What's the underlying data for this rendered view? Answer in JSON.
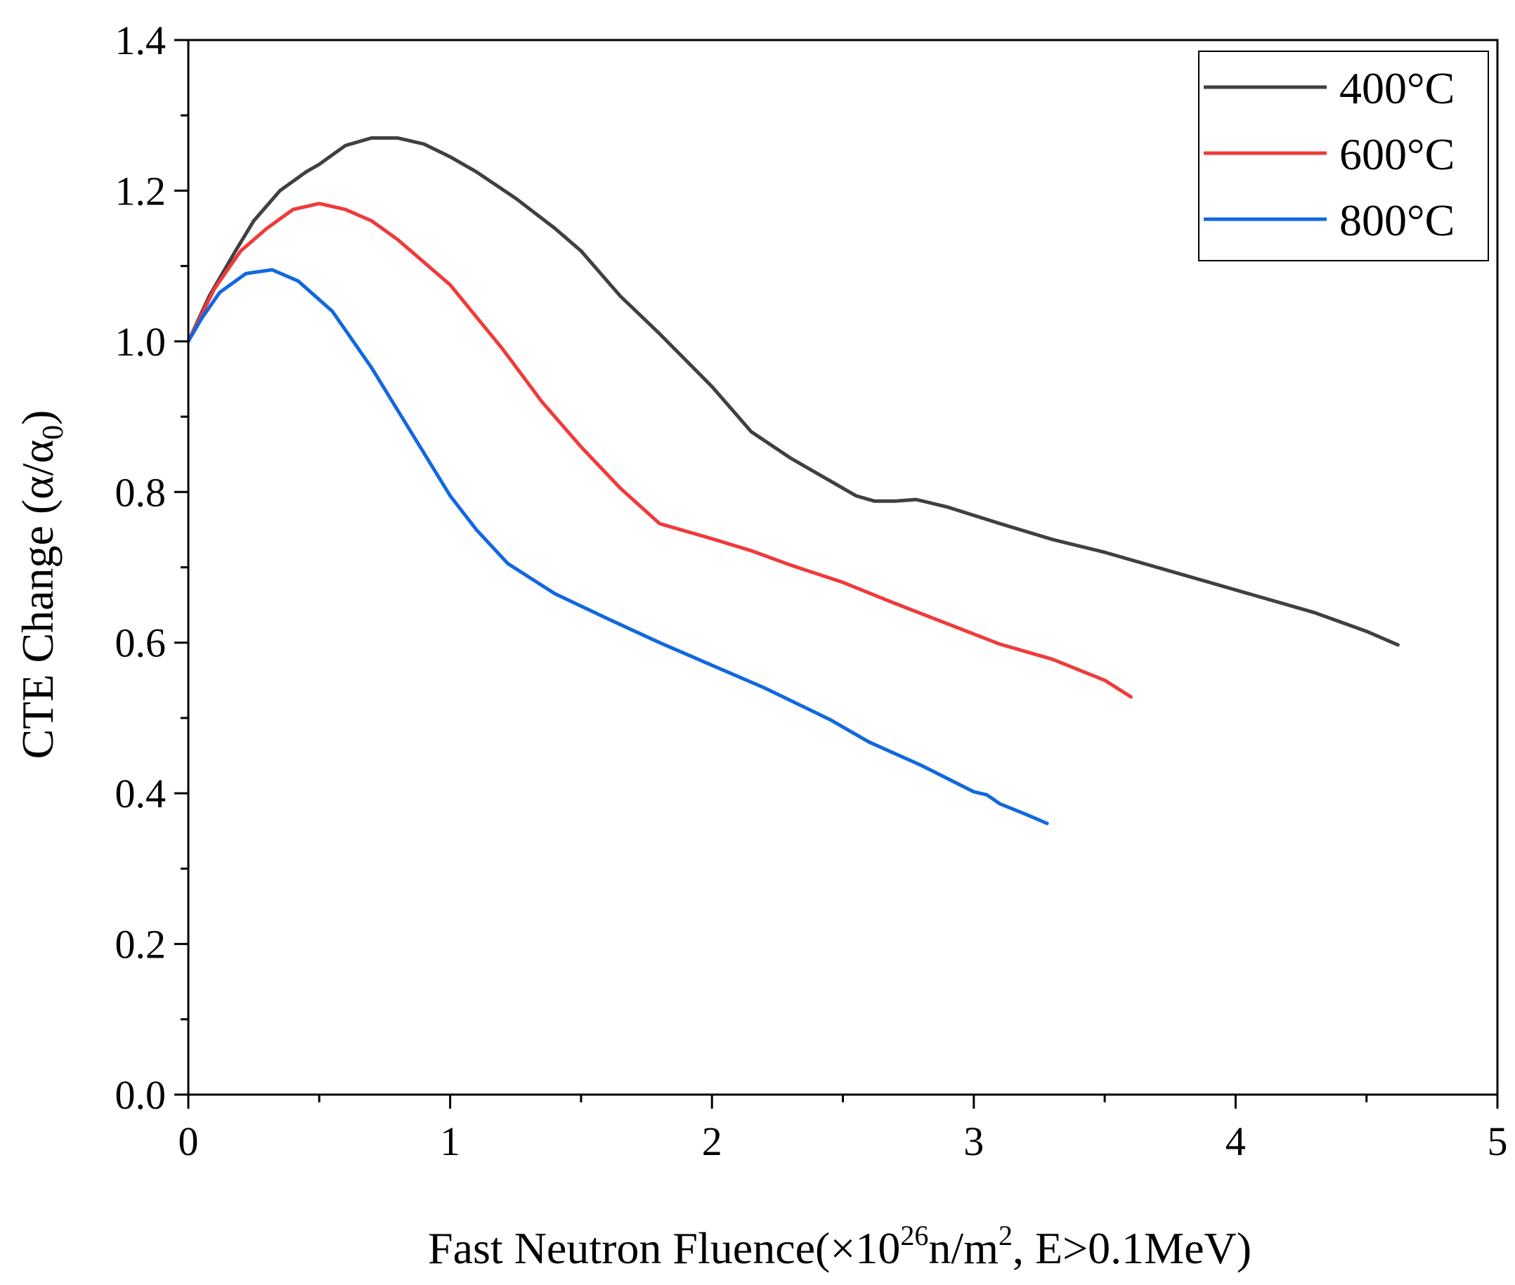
{
  "chart_data": {
    "type": "line",
    "xlabel_parts": {
      "before": "Fast Neutron Fluence(×10",
      "sup1": "26",
      "middle": "n/m",
      "sup2": "2",
      "after": ", E>0.1MeV)"
    },
    "ylabel_parts": {
      "before": "CTE Change (α/α",
      "sub": "0",
      "after": ")"
    },
    "xlim": [
      0,
      5
    ],
    "ylim": [
      0,
      1.4
    ],
    "xticks": [
      "0",
      "1",
      "2",
      "3",
      "4",
      "5"
    ],
    "yticks": [
      "0.0",
      "0.2",
      "0.4",
      "0.6",
      "0.8",
      "1.0",
      "1.2",
      "1.4"
    ],
    "legend_position": "top-right",
    "series": [
      {
        "name": "400°C",
        "color": "#404040",
        "x": [
          0,
          0.08,
          0.18,
          0.25,
          0.35,
          0.45,
          0.5,
          0.6,
          0.7,
          0.8,
          0.9,
          1.0,
          1.1,
          1.25,
          1.4,
          1.5,
          1.65,
          1.8,
          2.0,
          2.15,
          2.3,
          2.45,
          2.55,
          2.62,
          2.7,
          2.78,
          2.9,
          3.1,
          3.3,
          3.5,
          3.7,
          3.9,
          4.1,
          4.3,
          4.5,
          4.62
        ],
        "y": [
          1.0,
          1.06,
          1.12,
          1.16,
          1.2,
          1.225,
          1.235,
          1.26,
          1.27,
          1.27,
          1.262,
          1.245,
          1.225,
          1.19,
          1.15,
          1.12,
          1.06,
          1.01,
          0.94,
          0.88,
          0.845,
          0.815,
          0.795,
          0.788,
          0.788,
          0.79,
          0.78,
          0.758,
          0.737,
          0.72,
          0.7,
          0.68,
          0.66,
          0.64,
          0.615,
          0.597
        ]
      },
      {
        "name": "600°C",
        "color": "#f03a3a",
        "x": [
          0,
          0.1,
          0.2,
          0.3,
          0.4,
          0.5,
          0.6,
          0.7,
          0.8,
          1.0,
          1.2,
          1.35,
          1.5,
          1.65,
          1.8,
          2.0,
          2.15,
          2.3,
          2.5,
          2.7,
          2.9,
          3.1,
          3.3,
          3.5,
          3.6
        ],
        "y": [
          1.0,
          1.07,
          1.12,
          1.15,
          1.175,
          1.183,
          1.175,
          1.16,
          1.135,
          1.075,
          0.99,
          0.92,
          0.86,
          0.805,
          0.758,
          0.738,
          0.722,
          0.703,
          0.68,
          0.652,
          0.625,
          0.598,
          0.578,
          0.55,
          0.528
        ]
      },
      {
        "name": "800°C",
        "color": "#1168e0",
        "x": [
          0,
          0.05,
          0.12,
          0.22,
          0.32,
          0.42,
          0.55,
          0.7,
          0.85,
          1.0,
          1.1,
          1.22,
          1.4,
          1.6,
          1.8,
          2.0,
          2.2,
          2.45,
          2.6,
          2.8,
          3.0,
          3.05,
          3.1,
          3.2,
          3.28
        ],
        "y": [
          1.0,
          1.03,
          1.065,
          1.09,
          1.095,
          1.08,
          1.04,
          0.965,
          0.88,
          0.795,
          0.75,
          0.705,
          0.665,
          0.632,
          0.6,
          0.57,
          0.54,
          0.498,
          0.468,
          0.437,
          0.402,
          0.398,
          0.386,
          0.372,
          0.36
        ]
      }
    ]
  }
}
